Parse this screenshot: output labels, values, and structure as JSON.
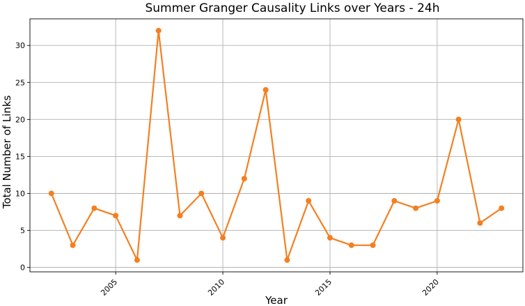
{
  "chart_data": {
    "type": "line",
    "title": "Summer Granger Causality Links over Years - 24h",
    "xlabel": "Year",
    "ylabel": "Total Number of Links",
    "x": [
      2002,
      2003,
      2004,
      2005,
      2006,
      2007,
      2008,
      2009,
      2010,
      2011,
      2012,
      2013,
      2014,
      2015,
      2016,
      2017,
      2018,
      2019,
      2020,
      2021,
      2022,
      2023
    ],
    "series": [
      {
        "name": "",
        "color": "#f47f20",
        "values": [
          10,
          3,
          8,
          7,
          1,
          32,
          7,
          10,
          4,
          12,
          24,
          1,
          9,
          4,
          3,
          3,
          9,
          8,
          9,
          20,
          6,
          8
        ]
      }
    ],
    "xlim": [
      2001.0,
      2024.0
    ],
    "ylim": [
      -0.6,
      33.6
    ],
    "xticks": [
      2005,
      2010,
      2015,
      2020
    ],
    "yticks": [
      0,
      5,
      10,
      15,
      20,
      25,
      30
    ],
    "xtick_rotation": 45,
    "grid": true,
    "legend": "none"
  }
}
